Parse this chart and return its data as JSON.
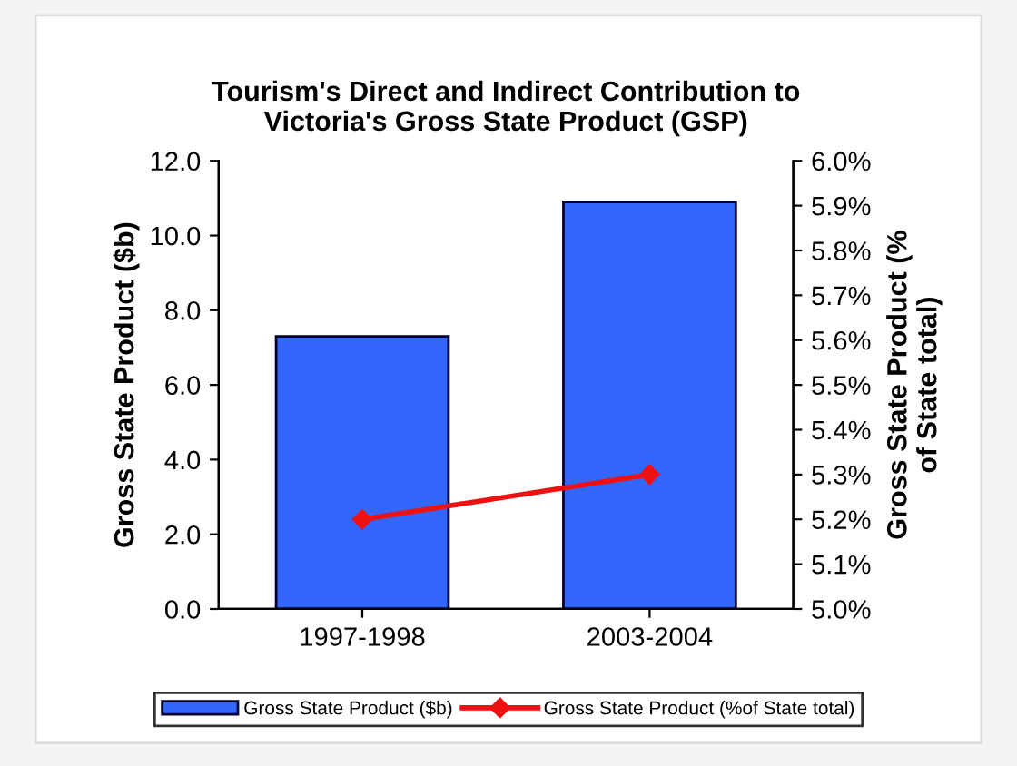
{
  "chart_data": {
    "type": "bar",
    "title": "Tourism's Direct and Indirect Contribution to\nVictoria's Gross State Product (GSP)",
    "ylabel": "Gross State Product ($b)",
    "y2label": "Gross State Product (%\nof State total)",
    "categories": [
      "1997-1998",
      "2003-2004"
    ],
    "series": [
      {
        "name": "Gross State Product ($b)",
        "color": "#3366ff",
        "values": [
          7.3,
          10.9
        ]
      },
      {
        "name": "Gross State Product (%of State total)",
        "type": "line",
        "axis": "y2",
        "color": "#ee1111",
        "marker": "diamond",
        "values": [
          5.2,
          5.3
        ]
      }
    ],
    "ylim": [
      0,
      12
    ],
    "yticks": [
      {
        "value": 0,
        "label": "0.0"
      },
      {
        "value": 2,
        "label": "2.0"
      },
      {
        "value": 4,
        "label": "4.0"
      },
      {
        "value": 6,
        "label": "6.0"
      },
      {
        "value": 8,
        "label": "8.0"
      },
      {
        "value": 10,
        "label": "10.0"
      },
      {
        "value": 12,
        "label": "12.0"
      }
    ],
    "y2lim": [
      5.0,
      6.0
    ],
    "y2ticks": [
      {
        "value": 5.0,
        "label": "5.0%"
      },
      {
        "value": 5.1,
        "label": "5.1%"
      },
      {
        "value": 5.2,
        "label": "5.2%"
      },
      {
        "value": 5.3,
        "label": "5.3%"
      },
      {
        "value": 5.4,
        "label": "5.4%"
      },
      {
        "value": 5.5,
        "label": "5.5%"
      },
      {
        "value": 5.6,
        "label": "5.6%"
      },
      {
        "value": 5.7,
        "label": "5.7%"
      },
      {
        "value": 5.8,
        "label": "5.8%"
      },
      {
        "value": 5.9,
        "label": "5.9%"
      },
      {
        "value": 6.0,
        "label": "6.0%"
      }
    ],
    "grid": false,
    "legend": "bottom"
  }
}
